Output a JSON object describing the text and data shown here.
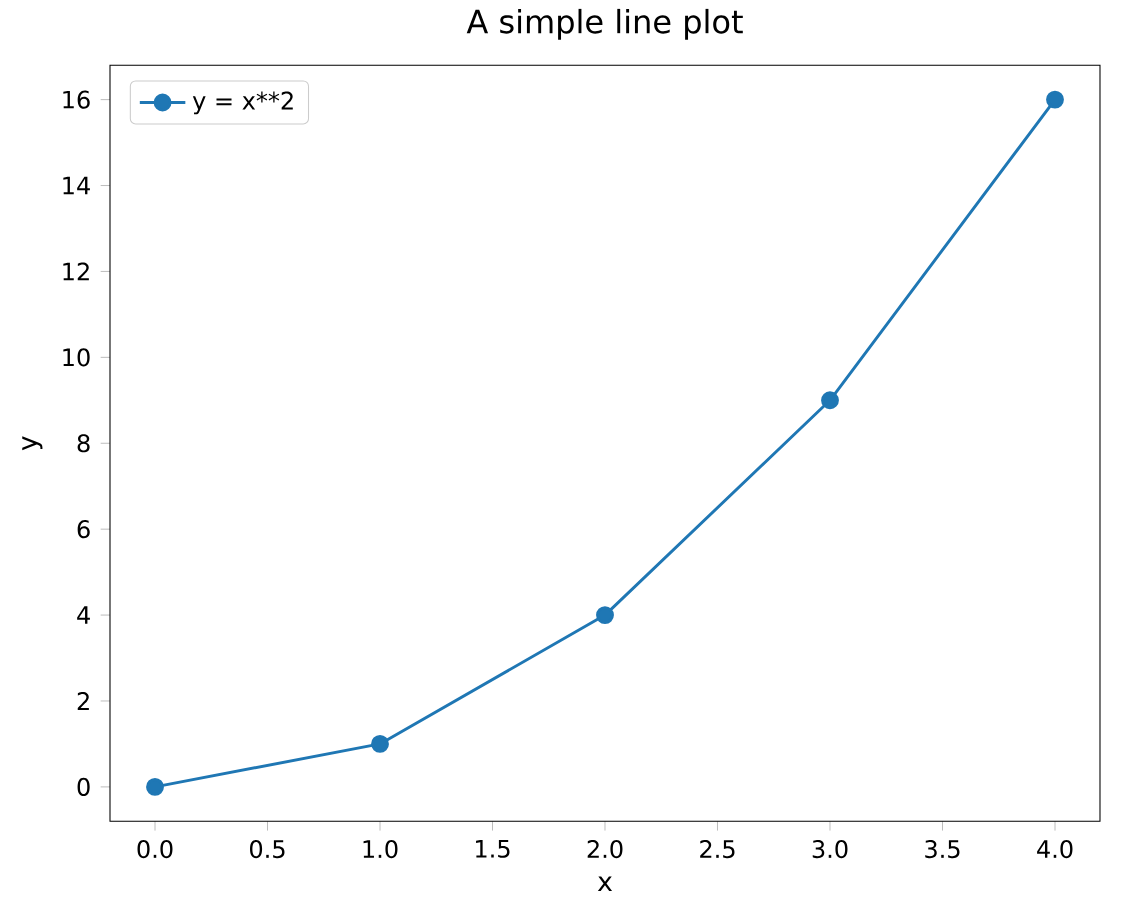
{
  "chart_data": {
    "type": "line",
    "title": "A simple line plot",
    "xlabel": "x",
    "ylabel": "y",
    "x": [
      0,
      1,
      2,
      3,
      4
    ],
    "series": [
      {
        "name": "y = x**2",
        "color": "#1f77b4",
        "values": [
          0,
          1,
          4,
          9,
          16
        ]
      }
    ],
    "xlim": [
      -0.2,
      4.2
    ],
    "ylim": [
      -0.8,
      16.8
    ],
    "xticks": [
      {
        "value": 0,
        "label": "0.0"
      },
      {
        "value": 0.5,
        "label": "0.5"
      },
      {
        "value": 1,
        "label": "1.0"
      },
      {
        "value": 1.5,
        "label": "1.5"
      },
      {
        "value": 2,
        "label": "2.0"
      },
      {
        "value": 2.5,
        "label": "2.5"
      },
      {
        "value": 3,
        "label": "3.0"
      },
      {
        "value": 3.5,
        "label": "3.5"
      },
      {
        "value": 4,
        "label": "4.0"
      }
    ],
    "yticks": [
      0,
      2,
      4,
      6,
      8,
      10,
      12,
      14,
      16
    ],
    "legend": "top left",
    "marker": "circle",
    "line_style": "solid",
    "grid": false
  }
}
